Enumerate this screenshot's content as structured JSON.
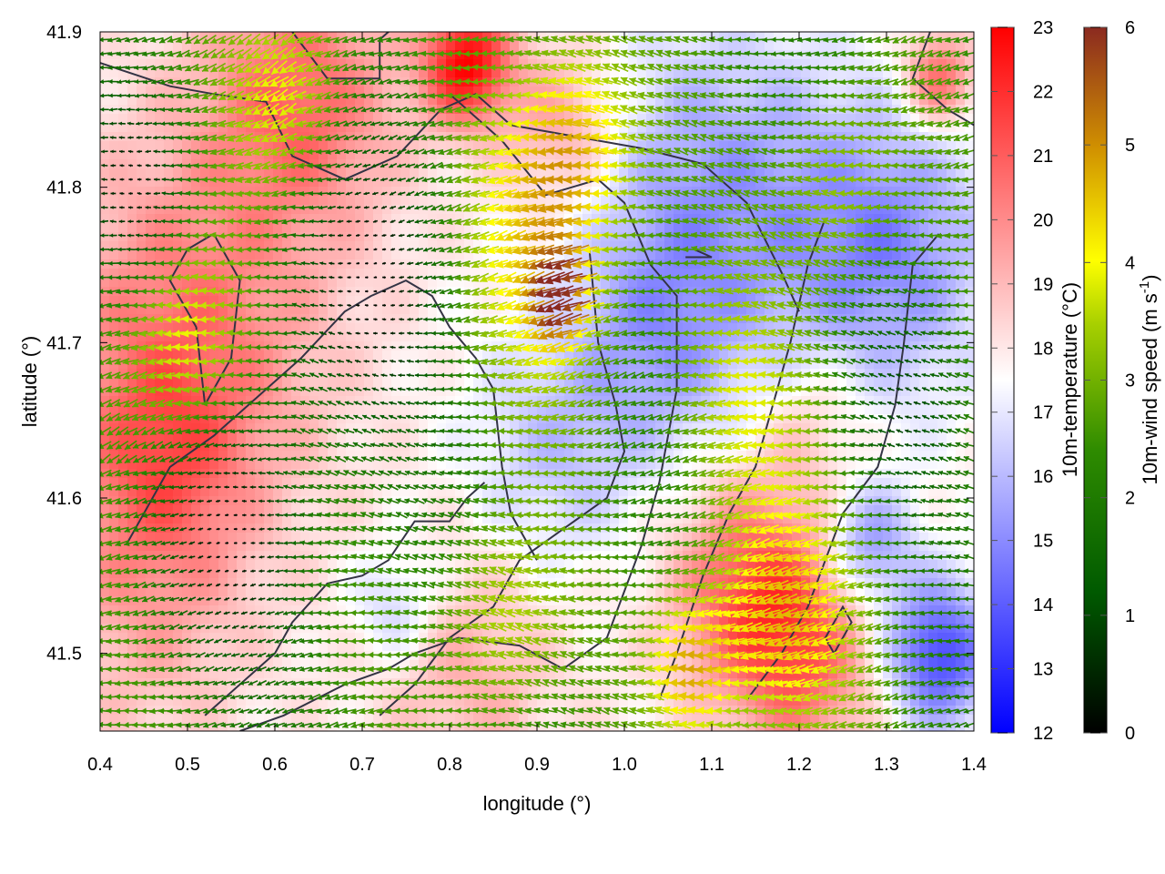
{
  "chart_data": {
    "type": "heatmap",
    "overlay": "wind-vector-field",
    "xlabel": "longitude (°)",
    "ylabel": "latitude (°)",
    "xlim": [
      0.4,
      1.4
    ],
    "ylim": [
      41.45,
      41.9
    ],
    "x_ticks": [
      "0.4",
      "0.5",
      "0.6",
      "0.7",
      "0.8",
      "0.9",
      "1.0",
      "1.1",
      "1.2",
      "1.3",
      "1.4"
    ],
    "y_ticks": [
      "41.5",
      "41.6",
      "41.7",
      "41.8",
      "41.9"
    ],
    "temperature_colorbar": {
      "label": "10m-temperature (°C)",
      "range": [
        12,
        23
      ],
      "ticks": [
        "12",
        "13",
        "14",
        "15",
        "16",
        "17",
        "18",
        "19",
        "20",
        "21",
        "22",
        "23"
      ],
      "colors": [
        "#0000ff",
        "#ffffff",
        "#ff0000"
      ]
    },
    "wind_colorbar": {
      "label_main": "10m-wind speed (m s",
      "label_sup": "-1",
      "label_end": ")",
      "range": [
        0,
        6
      ],
      "ticks": [
        "0",
        "1",
        "2",
        "3",
        "4",
        "5",
        "6"
      ],
      "colors": [
        "#000000",
        "#006400",
        "#9acd00",
        "#ffff00",
        "#cc7a00",
        "#8b2500"
      ]
    },
    "grid": false,
    "temperature_field": {
      "background_c": 17.8,
      "features": [
        {
          "lon": 0.5,
          "lat": 41.71,
          "temp": 20.3,
          "radius": 0.16
        },
        {
          "lon": 0.47,
          "lat": 41.62,
          "temp": 19.8,
          "radius": 0.1
        },
        {
          "lon": 0.63,
          "lat": 41.86,
          "temp": 20.6,
          "radius": 0.11
        },
        {
          "lon": 0.82,
          "lat": 41.88,
          "temp": 22.8,
          "radius": 0.05
        },
        {
          "lon": 0.93,
          "lat": 41.84,
          "temp": 19.6,
          "radius": 0.07
        },
        {
          "lon": 1.36,
          "lat": 41.87,
          "temp": 21.0,
          "radius": 0.04
        },
        {
          "lon": 1.15,
          "lat": 41.54,
          "temp": 21.3,
          "radius": 0.09
        },
        {
          "lon": 1.21,
          "lat": 41.49,
          "temp": 20.0,
          "radius": 0.08
        },
        {
          "lon": 0.82,
          "lat": 41.49,
          "temp": 19.2,
          "radius": 0.1
        },
        {
          "lon": 0.45,
          "lat": 41.52,
          "temp": 19.0,
          "radius": 0.12
        },
        {
          "lon": 1.1,
          "lat": 41.8,
          "temp": 15.5,
          "radius": 0.14
        },
        {
          "lon": 1.3,
          "lat": 41.76,
          "temp": 15.0,
          "radius": 0.12
        },
        {
          "lon": 1.04,
          "lat": 41.7,
          "temp": 16.0,
          "radius": 0.1
        },
        {
          "lon": 0.92,
          "lat": 41.63,
          "temp": 16.3,
          "radius": 0.1
        },
        {
          "lon": 1.36,
          "lat": 41.5,
          "temp": 13.5,
          "radius": 0.06
        },
        {
          "lon": 1.28,
          "lat": 41.57,
          "temp": 15.2,
          "radius": 0.05
        },
        {
          "lon": 0.74,
          "lat": 41.53,
          "temp": 16.2,
          "radius": 0.05
        },
        {
          "lon": 1.22,
          "lat": 41.65,
          "temp": 18.8,
          "radius": 0.06
        }
      ]
    },
    "wind_field": {
      "grid_lon_step": 0.01,
      "grid_lat_step": 0.009,
      "prevailing_direction": "from east to west",
      "speed_features": [
        {
          "lon": 0.5,
          "lat": 41.7,
          "speed": 4.4,
          "radius": 0.07
        },
        {
          "lon": 0.62,
          "lat": 41.86,
          "speed": 4.2,
          "radius": 0.07
        },
        {
          "lon": 0.9,
          "lat": 41.76,
          "speed": 4.0,
          "radius": 0.1
        },
        {
          "lon": 0.95,
          "lat": 41.83,
          "speed": 4.3,
          "radius": 0.07
        },
        {
          "lon": 0.93,
          "lat": 41.73,
          "speed": 5.0,
          "radius": 0.03
        },
        {
          "lon": 1.18,
          "lat": 41.52,
          "speed": 4.5,
          "radius": 0.08
        },
        {
          "lon": 1.08,
          "lat": 41.49,
          "speed": 4.6,
          "radius": 0.05
        },
        {
          "lon": 0.86,
          "lat": 41.52,
          "speed": 3.8,
          "radius": 0.07
        },
        {
          "lon": 1.13,
          "lat": 41.66,
          "speed": 3.6,
          "radius": 0.08
        },
        {
          "lon": 1.25,
          "lat": 41.8,
          "speed": 3.6,
          "radius": 0.07
        },
        {
          "lon": 0.7,
          "lat": 41.74,
          "speed": 0.3,
          "radius": 0.1
        },
        {
          "lon": 0.55,
          "lat": 41.58,
          "speed": 0.4,
          "radius": 0.08
        },
        {
          "lon": 0.44,
          "lat": 41.8,
          "speed": 0.5,
          "radius": 0.06
        },
        {
          "lon": 1.32,
          "lat": 41.66,
          "speed": 1.2,
          "radius": 0.06
        }
      ]
    },
    "boundaries": [
      [
        [
          0.4,
          41.88
        ],
        [
          0.48,
          41.865
        ],
        [
          0.53,
          41.86
        ],
        [
          0.59,
          41.855
        ],
        [
          0.62,
          41.82
        ],
        [
          0.68,
          41.805
        ],
        [
          0.74,
          41.82
        ],
        [
          0.79,
          41.85
        ],
        [
          0.83,
          41.86
        ],
        [
          0.87,
          41.84
        ],
        [
          0.92,
          41.835
        ],
        [
          1.02,
          41.825
        ],
        [
          1.09,
          41.815
        ],
        [
          1.14,
          41.79
        ],
        [
          1.18,
          41.745
        ],
        [
          1.2,
          41.72
        ]
      ],
      [
        [
          0.62,
          41.9
        ],
        [
          0.66,
          41.87
        ],
        [
          0.72,
          41.87
        ],
        [
          0.72,
          41.895
        ],
        [
          0.74,
          41.905
        ]
      ],
      [
        [
          0.8,
          41.86
        ],
        [
          0.82,
          41.85
        ],
        [
          0.86,
          41.83
        ],
        [
          0.91,
          41.795
        ],
        [
          0.97,
          41.805
        ],
        [
          1.0,
          41.79
        ],
        [
          1.03,
          41.75
        ],
        [
          1.06,
          41.73
        ],
        [
          1.06,
          41.67
        ],
        [
          1.04,
          41.61
        ],
        [
          1.02,
          41.57
        ],
        [
          0.98,
          41.51
        ],
        [
          0.93,
          41.49
        ],
        [
          0.88,
          41.505
        ],
        [
          0.81,
          41.51
        ],
        [
          0.76,
          41.5
        ],
        [
          0.73,
          41.49
        ],
        [
          0.68,
          41.48
        ],
        [
          0.61,
          41.46
        ],
        [
          0.56,
          41.45
        ]
      ],
      [
        [
          0.52,
          41.46
        ],
        [
          0.58,
          41.49
        ],
        [
          0.6,
          41.5
        ],
        [
          0.62,
          41.52
        ],
        [
          0.66,
          41.545
        ],
        [
          0.7,
          41.55
        ],
        [
          0.73,
          41.56
        ],
        [
          0.76,
          41.585
        ],
        [
          0.8,
          41.585
        ],
        [
          0.82,
          41.6
        ],
        [
          0.84,
          41.61
        ]
      ],
      [
        [
          0.43,
          41.57
        ],
        [
          0.46,
          41.6
        ],
        [
          0.48,
          41.62
        ],
        [
          0.53,
          41.64
        ],
        [
          0.57,
          41.66
        ],
        [
          0.63,
          41.69
        ],
        [
          0.68,
          41.72
        ],
        [
          0.71,
          41.73
        ],
        [
          0.75,
          41.74
        ],
        [
          0.78,
          41.73
        ],
        [
          0.8,
          41.71
        ],
        [
          0.83,
          41.69
        ],
        [
          0.85,
          41.67
        ],
        [
          0.86,
          41.62
        ],
        [
          0.87,
          41.59
        ],
        [
          0.9,
          41.56
        ]
      ],
      [
        [
          0.52,
          41.66
        ],
        [
          0.55,
          41.69
        ],
        [
          0.56,
          41.74
        ],
        [
          0.53,
          41.77
        ],
        [
          0.5,
          41.76
        ],
        [
          0.48,
          41.74
        ],
        [
          0.51,
          41.71
        ],
        [
          0.52,
          41.66
        ]
      ],
      [
        [
          0.72,
          41.46
        ],
        [
          0.76,
          41.48
        ],
        [
          0.8,
          41.51
        ],
        [
          0.85,
          41.53
        ],
        [
          0.88,
          41.56
        ],
        [
          0.93,
          41.58
        ],
        [
          0.98,
          41.6
        ],
        [
          1.0,
          41.63
        ],
        [
          0.99,
          41.66
        ],
        [
          0.97,
          41.7
        ],
        [
          0.96,
          41.76
        ]
      ],
      [
        [
          1.04,
          41.47
        ],
        [
          1.06,
          41.5
        ],
        [
          1.09,
          41.55
        ],
        [
          1.12,
          41.59
        ],
        [
          1.15,
          41.62
        ],
        [
          1.17,
          41.66
        ],
        [
          1.19,
          41.7
        ],
        [
          1.21,
          41.75
        ],
        [
          1.23,
          41.78
        ]
      ],
      [
        [
          1.14,
          41.47
        ],
        [
          1.18,
          41.5
        ],
        [
          1.21,
          41.53
        ],
        [
          1.23,
          41.56
        ],
        [
          1.25,
          41.59
        ],
        [
          1.29,
          41.62
        ],
        [
          1.31,
          41.66
        ],
        [
          1.32,
          41.7
        ],
        [
          1.33,
          41.75
        ],
        [
          1.36,
          41.77
        ]
      ],
      [
        [
          1.24,
          41.5
        ],
        [
          1.26,
          41.52
        ],
        [
          1.25,
          41.53
        ],
        [
          1.23,
          41.51
        ],
        [
          1.24,
          41.5
        ]
      ],
      [
        [
          1.35,
          41.9
        ],
        [
          1.33,
          41.87
        ],
        [
          1.37,
          41.85
        ],
        [
          1.4,
          41.84
        ]
      ],
      [
        [
          1.08,
          41.76
        ],
        [
          1.1,
          41.755
        ],
        [
          1.07,
          41.755
        ]
      ]
    ]
  }
}
